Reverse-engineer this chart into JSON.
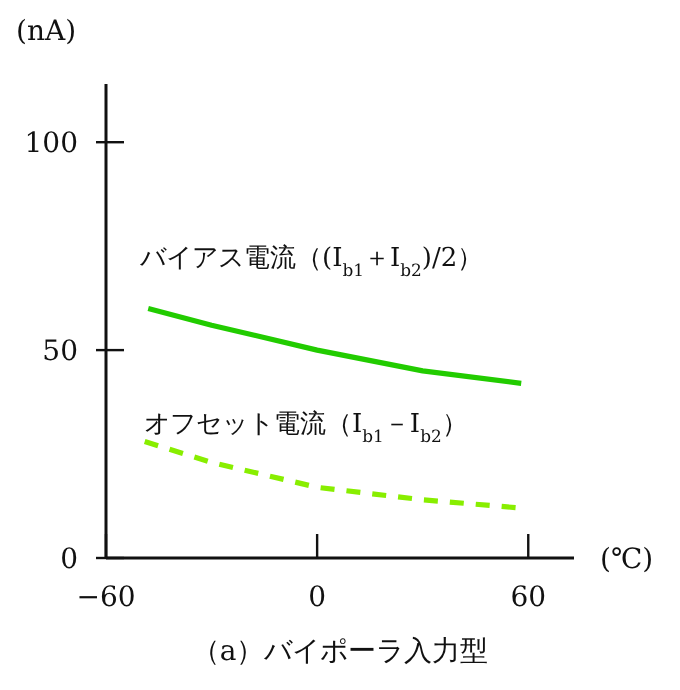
{
  "chart_data": {
    "type": "line",
    "title": "（a）バイポーラ入力型",
    "xlabel": "(℃)",
    "ylabel": "(nA)",
    "xlim": [
      -60,
      73
    ],
    "ylim": [
      0,
      114
    ],
    "xticks": [
      -60,
      0,
      60
    ],
    "yticks": [
      0,
      50,
      100
    ],
    "grid": false,
    "marker": "none",
    "series": [
      {
        "name": "バイアス電流（(I$_{b1}$＋I$_{b2}$)/2）",
        "color": "#22cc00",
        "line_style": "solid",
        "x": [
          -48,
          -30,
          0,
          30,
          58
        ],
        "values": [
          60,
          56,
          50,
          45,
          42
        ]
      },
      {
        "name": "オフセット電流（I$_{b1}$－I$_{b2}$）",
        "color": "#88ee00",
        "line_style": "dashed",
        "x": [
          -49,
          -30,
          0,
          30,
          58
        ],
        "values": [
          28,
          23,
          17,
          14,
          12
        ]
      }
    ]
  }
}
